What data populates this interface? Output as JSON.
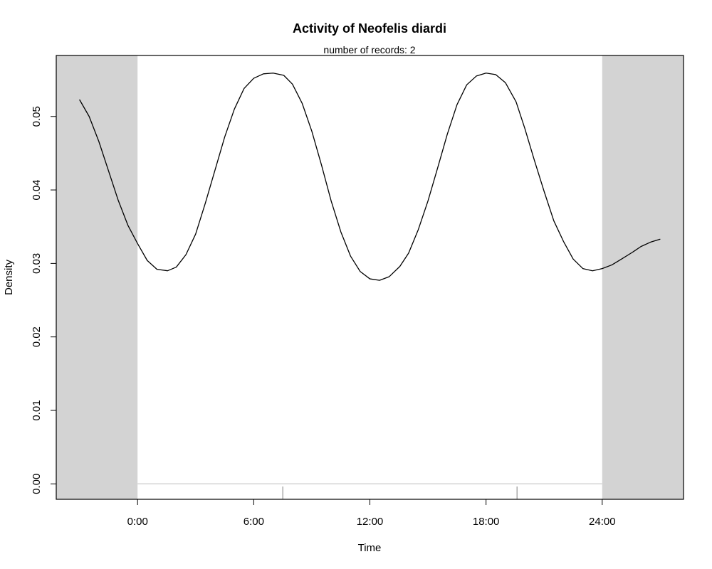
{
  "chart_data": {
    "type": "line",
    "title": "Activity of Neofelis diardi",
    "subtitle": "number of records: 2",
    "xlabel": "Time",
    "ylabel": "Density",
    "xlim": [
      -4.2,
      28.2
    ],
    "ylim": [
      -0.0021,
      0.0583
    ],
    "x_ticks": [
      {
        "value": 0,
        "label": "0:00"
      },
      {
        "value": 6,
        "label": "6:00"
      },
      {
        "value": 12,
        "label": "12:00"
      },
      {
        "value": 18,
        "label": "18:00"
      },
      {
        "value": 24,
        "label": "24:00"
      }
    ],
    "y_ticks": [
      {
        "value": 0.0,
        "label": "0.00"
      },
      {
        "value": 0.01,
        "label": "0.01"
      },
      {
        "value": 0.02,
        "label": "0.02"
      },
      {
        "value": 0.03,
        "label": "0.03"
      },
      {
        "value": 0.04,
        "label": "0.04"
      },
      {
        "value": 0.05,
        "label": "0.05"
      }
    ],
    "shaded_regions": [
      {
        "from": -4.2,
        "to": 0
      },
      {
        "from": 24,
        "to": 28.2
      }
    ],
    "baseline": {
      "y": 0,
      "from": 0,
      "to": 24
    },
    "rug": [
      7.5,
      19.6
    ],
    "series": [
      {
        "x": [
          -3,
          -2.5,
          -2,
          -1.5,
          -1,
          -0.5,
          0,
          0.5,
          1,
          1.55,
          2,
          2.5,
          3,
          3.5,
          4,
          4.5,
          5,
          5.5,
          6,
          6.5,
          7,
          7.55,
          8,
          8.5,
          9,
          9.5,
          10,
          10.5,
          11,
          11.5,
          12,
          12.5,
          13,
          13.55,
          14,
          14.5,
          15,
          15.5,
          16,
          16.5,
          17,
          17.5,
          18,
          18.5,
          19,
          19.55,
          20,
          20.5,
          21,
          21.5,
          22,
          22.5,
          23,
          23.5,
          24,
          24.5,
          25,
          25.55,
          26,
          26.5,
          27
        ],
        "y": [
          0.0523,
          0.05,
          0.0466,
          0.0426,
          0.0386,
          0.0352,
          0.0327,
          0.0304,
          0.0292,
          0.029,
          0.0295,
          0.0312,
          0.034,
          0.0382,
          0.0427,
          0.0472,
          0.051,
          0.0538,
          0.0552,
          0.0558,
          0.0559,
          0.0556,
          0.0544,
          0.0518,
          0.048,
          0.0434,
          0.0385,
          0.0343,
          0.031,
          0.0289,
          0.0279,
          0.0277,
          0.0282,
          0.0296,
          0.0314,
          0.0346,
          0.0385,
          0.043,
          0.0476,
          0.0516,
          0.0543,
          0.0555,
          0.0559,
          0.0557,
          0.0546,
          0.052,
          0.0484,
          0.044,
          0.0398,
          0.0358,
          0.033,
          0.0306,
          0.0293,
          0.029,
          0.0293,
          0.0298,
          0.0306,
          0.0315,
          0.0323,
          0.0329,
          0.0333
        ]
      }
    ],
    "colors": {
      "shade": "#d3d3d3",
      "line": "#000000",
      "baseline": "#d3d3d3",
      "rug": "#808080",
      "box": "#000000"
    },
    "grid": false
  }
}
